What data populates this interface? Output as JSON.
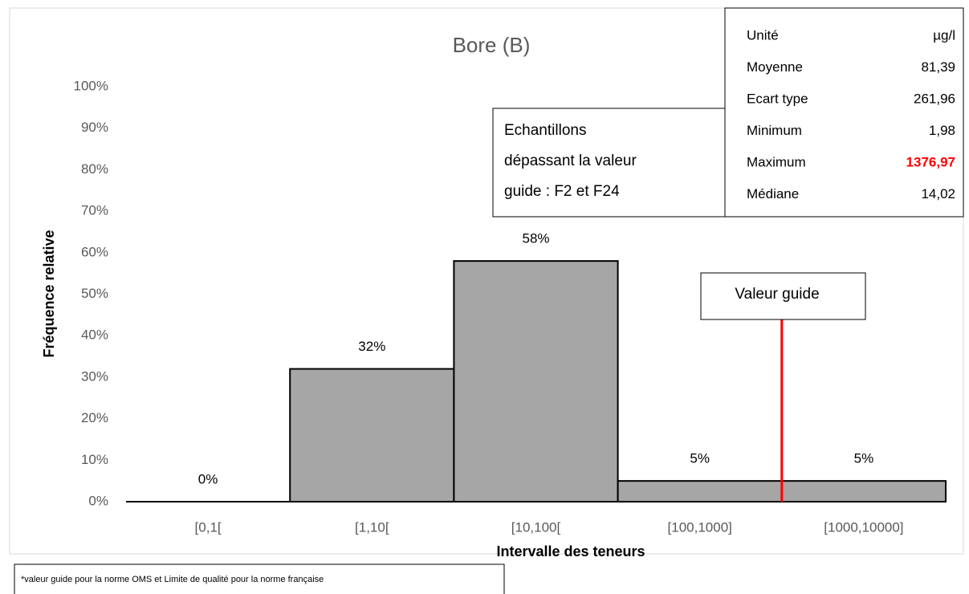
{
  "chart_data": {
    "type": "bar",
    "title": "Bore (B)",
    "categories": [
      "[0,1[",
      "[1,10[",
      "[10,100[",
      "[100,1000]",
      "[1000,10000]"
    ],
    "values": [
      0,
      32,
      58,
      5,
      5
    ],
    "value_labels": [
      "0%",
      "32%",
      "58%",
      "5%",
      "5%"
    ],
    "color": "#a6a6a6",
    "ylim": [
      0,
      100
    ],
    "yticks": [
      {
        "value": 0,
        "label": "0%"
      },
      {
        "value": 10,
        "label": "10%"
      },
      {
        "value": 20,
        "label": "20%"
      },
      {
        "value": 30,
        "label": "30%"
      },
      {
        "value": 40,
        "label": "40%"
      },
      {
        "value": 50,
        "label": "50%"
      },
      {
        "value": 60,
        "label": "60%"
      },
      {
        "value": 70,
        "label": "70%"
      },
      {
        "value": 80,
        "label": "80%"
      },
      {
        "value": 90,
        "label": "90%"
      },
      {
        "value": 100,
        "label": "100%"
      }
    ],
    "xlabel": "Intervalle des teneurs",
    "ylabel": "Fréquence relative",
    "guide_line": {
      "label": "Valeur guide",
      "color": "#ff0000"
    },
    "annotation": [
      "Echantillons",
      "dépassant la valeur",
      "guide : F2 et F24"
    ],
    "stats": [
      {
        "label": "Unité",
        "value": "µg/l"
      },
      {
        "label": "Moyenne",
        "value": "81,39"
      },
      {
        "label": "Ecart type",
        "value": "261,96"
      },
      {
        "label": "Minimum",
        "value": "1,98"
      },
      {
        "label": "Maximum",
        "value": "1376,97",
        "color": "#ff0000"
      },
      {
        "label": "Médiane",
        "value": "14,02"
      }
    ],
    "footnote": "*valeur guide pour la norme OMS et Limite de qualité pour la norme française"
  }
}
